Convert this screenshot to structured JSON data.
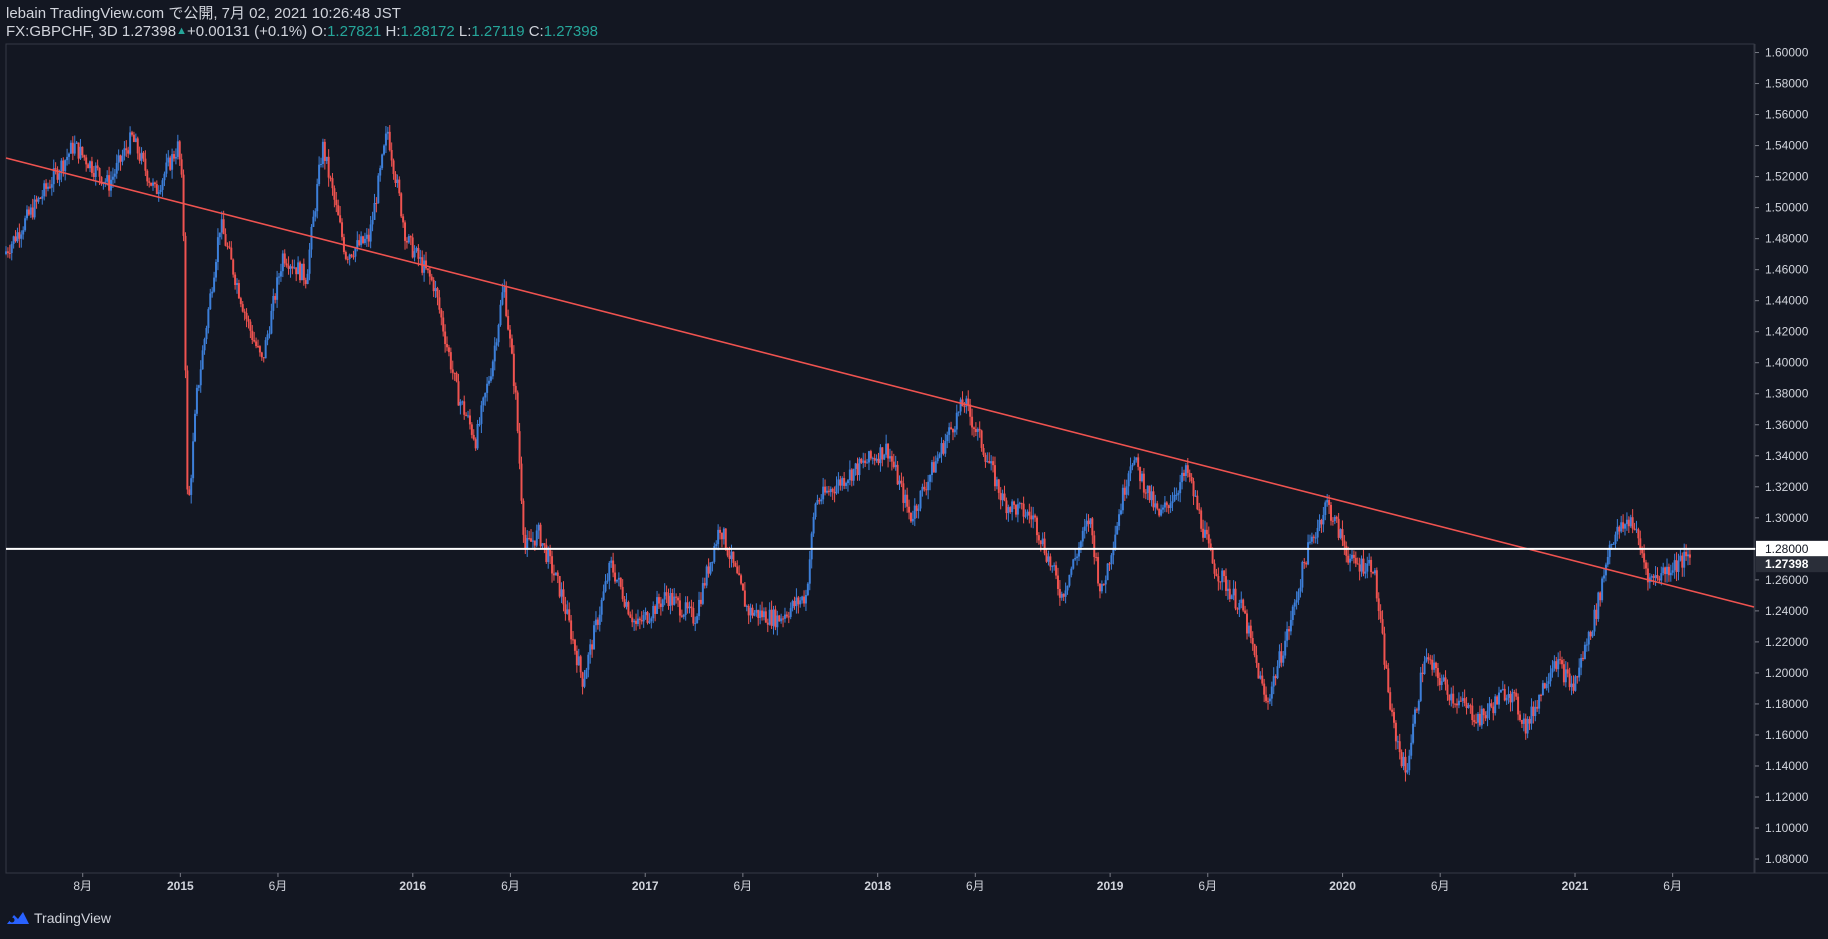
{
  "header": {
    "publish_line": "lebain TradingView.com で公開, 7月 02, 2021 10:26:48 JST",
    "symbol": "FX:GBPCHF, 3D",
    "last": "1.27398",
    "change": "+0.00131 (+0.1%)",
    "o_label": "O:",
    "o_value": "1.27821",
    "h_label": "H:",
    "h_value": "1.28172",
    "l_label": "L:",
    "l_value": "1.27119",
    "c_label": "C:",
    "c_value": "1.27398"
  },
  "footer": {
    "brand": "TradingView"
  },
  "colors": {
    "background": "#131722",
    "up": "#3d7fd9",
    "down": "#ef5350",
    "trendline": "#ef5350",
    "hline": "#ffffff",
    "text": "#d1d4dc",
    "accent": "#26a69a"
  },
  "chart_data": {
    "type": "candlestick",
    "title": "FX:GBPCHF, 3D",
    "y_ticks": [
      "1.08000",
      "1.10000",
      "1.12000",
      "1.14000",
      "1.16000",
      "1.18000",
      "1.20000",
      "1.22000",
      "1.24000",
      "1.26000",
      "1.28000",
      "1.30000",
      "1.32000",
      "1.34000",
      "1.36000",
      "1.38000",
      "1.40000",
      "1.42000",
      "1.44000",
      "1.46000",
      "1.48000",
      "1.50000",
      "1.52000",
      "1.54000",
      "1.56000",
      "1.58000",
      "1.60000"
    ],
    "ylim": [
      1.071,
      1.6055
    ],
    "x_ticks": [
      {
        "label": "8月",
        "date": 2014.58
      },
      {
        "label": "2015",
        "date": 2015.0
      },
      {
        "label": "6月",
        "date": 2015.42
      },
      {
        "label": "2016",
        "date": 2016.0
      },
      {
        "label": "6月",
        "date": 2016.42
      },
      {
        "label": "2017",
        "date": 2017.0
      },
      {
        "label": "6月",
        "date": 2017.42
      },
      {
        "label": "2018",
        "date": 2018.0
      },
      {
        "label": "6月",
        "date": 2018.42
      },
      {
        "label": "2019",
        "date": 2019.0
      },
      {
        "label": "6月",
        "date": 2019.42
      },
      {
        "label": "2020",
        "date": 2020.0
      },
      {
        "label": "6月",
        "date": 2020.42
      },
      {
        "label": "2021",
        "date": 2021.0
      },
      {
        "label": "6月",
        "date": 2021.42
      }
    ],
    "xlim": [
      2014.25,
      2021.77
    ],
    "horizontal_line": {
      "price": 1.28,
      "label": "1.28000"
    },
    "last_price": {
      "price": 1.27398,
      "label": "1.27398"
    },
    "trendline": [
      {
        "date": 2014.25,
        "price": 1.532
      },
      {
        "date": 2021.77,
        "price": 1.2425
      }
    ],
    "price_path": [
      [
        2014.25,
        1.47
      ],
      [
        2014.4,
        1.505
      ],
      [
        2014.55,
        1.54
      ],
      [
        2014.7,
        1.515
      ],
      [
        2014.8,
        1.545
      ],
      [
        2014.9,
        1.51
      ],
      [
        2015.0,
        1.54
      ],
      [
        2015.02,
        1.505
      ],
      [
        2015.04,
        1.3
      ],
      [
        2015.08,
        1.38
      ],
      [
        2015.18,
        1.49
      ],
      [
        2015.3,
        1.425
      ],
      [
        2015.36,
        1.4
      ],
      [
        2015.45,
        1.47
      ],
      [
        2015.55,
        1.455
      ],
      [
        2015.62,
        1.54
      ],
      [
        2015.72,
        1.47
      ],
      [
        2015.82,
        1.48
      ],
      [
        2015.9,
        1.55
      ],
      [
        2015.98,
        1.48
      ],
      [
        2016.1,
        1.45
      ],
      [
        2016.2,
        1.38
      ],
      [
        2016.28,
        1.35
      ],
      [
        2016.35,
        1.4
      ],
      [
        2016.4,
        1.45
      ],
      [
        2016.45,
        1.38
      ],
      [
        2016.49,
        1.28
      ],
      [
        2016.55,
        1.29
      ],
      [
        2016.65,
        1.25
      ],
      [
        2016.74,
        1.195
      ],
      [
        2016.86,
        1.27
      ],
      [
        2016.97,
        1.23
      ],
      [
        2017.1,
        1.25
      ],
      [
        2017.22,
        1.235
      ],
      [
        2017.33,
        1.295
      ],
      [
        2017.45,
        1.24
      ],
      [
        2017.58,
        1.235
      ],
      [
        2017.7,
        1.25
      ],
      [
        2017.74,
        1.31
      ],
      [
        2017.9,
        1.33
      ],
      [
        2018.05,
        1.345
      ],
      [
        2018.15,
        1.3
      ],
      [
        2018.3,
        1.35
      ],
      [
        2018.38,
        1.375
      ],
      [
        2018.45,
        1.35
      ],
      [
        2018.55,
        1.31
      ],
      [
        2018.68,
        1.3
      ],
      [
        2018.8,
        1.25
      ],
      [
        2018.92,
        1.3
      ],
      [
        2018.97,
        1.25
      ],
      [
        2019.1,
        1.34
      ],
      [
        2019.22,
        1.3
      ],
      [
        2019.34,
        1.33
      ],
      [
        2019.45,
        1.27
      ],
      [
        2019.58,
        1.24
      ],
      [
        2019.68,
        1.18
      ],
      [
        2019.78,
        1.23
      ],
      [
        2019.85,
        1.275
      ],
      [
        2019.94,
        1.31
      ],
      [
        2020.05,
        1.27
      ],
      [
        2020.14,
        1.27
      ],
      [
        2020.22,
        1.17
      ],
      [
        2020.28,
        1.135
      ],
      [
        2020.36,
        1.21
      ],
      [
        2020.48,
        1.185
      ],
      [
        2020.6,
        1.17
      ],
      [
        2020.72,
        1.19
      ],
      [
        2020.8,
        1.165
      ],
      [
        2020.92,
        1.21
      ],
      [
        2021.0,
        1.19
      ],
      [
        2021.1,
        1.24
      ],
      [
        2021.16,
        1.285
      ],
      [
        2021.25,
        1.3
      ],
      [
        2021.33,
        1.26
      ],
      [
        2021.44,
        1.27
      ],
      [
        2021.5,
        1.274
      ]
    ]
  }
}
